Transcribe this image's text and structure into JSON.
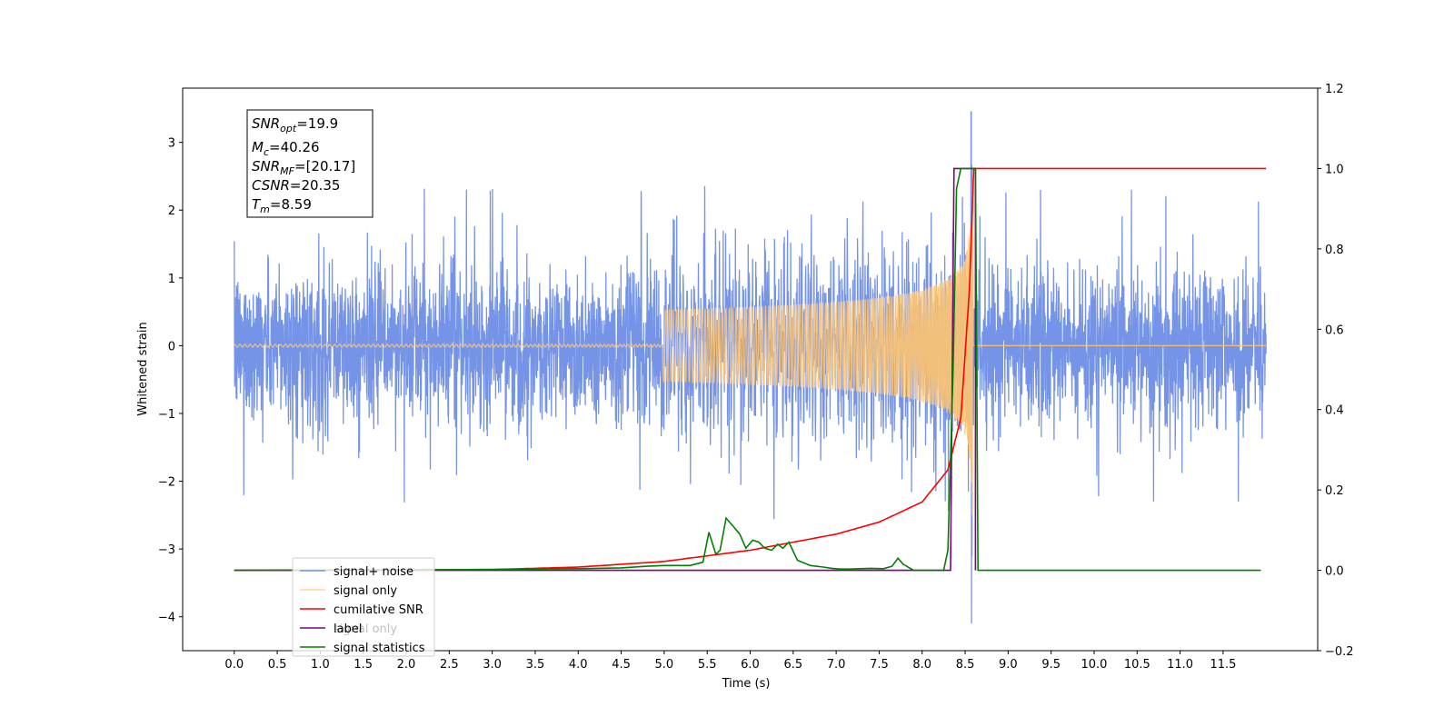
{
  "chart_data": {
    "type": "line",
    "xlabel": "Time (s)",
    "ylabel": "Whitened strain",
    "xlim": [
      -0.6,
      12.6
    ],
    "ylim": [
      -4.5,
      3.8
    ],
    "y2lim": [
      -0.2,
      1.2
    ],
    "x_ticks": [
      "0.0",
      "0.5",
      "1.0",
      "1.5",
      "2.0",
      "2.5",
      "3.0",
      "3.5",
      "4.0",
      "4.5",
      "5.0",
      "5.5",
      "6.0",
      "6.5",
      "7.0",
      "7.5",
      "8.0",
      "8.5",
      "9.0",
      "9.5",
      "10.0",
      "10.5",
      "11.0",
      "11.5"
    ],
    "y_ticks": [
      "−4",
      "−3",
      "−2",
      "−1",
      "0",
      "1",
      "2",
      "3"
    ],
    "y2_ticks": [
      "−0.2",
      "0.0",
      "0.2",
      "0.4",
      "0.6",
      "0.8",
      "1.0",
      "1.2"
    ],
    "grid": false,
    "legend_position": "lower-left",
    "info_box": {
      "snr_opt": {
        "base": "SNR",
        "sub": "opt",
        "value": "=19.9"
      },
      "mc": {
        "base": "M",
        "sub": "c",
        "value": "=40.26"
      },
      "snr_mf": {
        "base": "SNR",
        "sub": "MF",
        "value": "=[20.17]"
      },
      "csnr": {
        "base": "CSNR",
        "value": "=20.35"
      },
      "tm": {
        "base": "T",
        "sub": "m",
        "value": "=8.59"
      }
    },
    "series": [
      {
        "name": "signal+ noise",
        "color": "#7594e8",
        "axis": "left",
        "description_values": {
          "x_start": 0.0,
          "x_end": 12.0,
          "typical_amplitude": 1.1,
          "max": 3.45,
          "min": -4.1,
          "peak_x": 8.57
        }
      },
      {
        "name": "signal only",
        "color": "#ffc470",
        "axis": "left",
        "chirp": {
          "t_merger": 8.59,
          "peak_amplitude": 2.9,
          "visible_from": 5.0
        }
      },
      {
        "name": "cumilative SNR",
        "color": "#ff0000",
        "axis": "right",
        "points": [
          [
            0.0,
            0.0
          ],
          [
            3.0,
            0.002
          ],
          [
            4.0,
            0.008
          ],
          [
            5.0,
            0.022
          ],
          [
            6.0,
            0.05
          ],
          [
            7.0,
            0.09
          ],
          [
            7.5,
            0.12
          ],
          [
            8.0,
            0.17
          ],
          [
            8.3,
            0.25
          ],
          [
            8.45,
            0.38
          ],
          [
            8.55,
            0.7
          ],
          [
            8.6,
            1.0
          ],
          [
            12.0,
            1.0
          ]
        ]
      },
      {
        "name": "label",
        "color": "#800080",
        "axis": "right",
        "points": [
          [
            0.0,
            0.0
          ],
          [
            8.33,
            0.0
          ],
          [
            8.37,
            1.0
          ],
          [
            8.62,
            1.0
          ],
          [
            8.62,
            0.0
          ]
        ]
      },
      {
        "name": "signal statistics",
        "color": "#008000",
        "axis": "right",
        "points": [
          [
            0.0,
            0.0
          ],
          [
            3.0,
            0.002
          ],
          [
            3.5,
            0.003
          ],
          [
            4.0,
            0.004
          ],
          [
            4.5,
            0.006
          ],
          [
            4.8,
            0.01
          ],
          [
            5.0,
            0.012
          ],
          [
            5.3,
            0.012
          ],
          [
            5.45,
            0.02
          ],
          [
            5.52,
            0.095
          ],
          [
            5.6,
            0.04
          ],
          [
            5.65,
            0.05
          ],
          [
            5.72,
            0.13
          ],
          [
            5.8,
            0.11
          ],
          [
            5.88,
            0.09
          ],
          [
            5.95,
            0.055
          ],
          [
            6.03,
            0.075
          ],
          [
            6.1,
            0.07
          ],
          [
            6.17,
            0.055
          ],
          [
            6.25,
            0.05
          ],
          [
            6.32,
            0.065
          ],
          [
            6.38,
            0.055
          ],
          [
            6.45,
            0.07
          ],
          [
            6.55,
            0.025
          ],
          [
            6.7,
            0.012
          ],
          [
            6.85,
            0.008
          ],
          [
            6.95,
            0.005
          ],
          [
            7.05,
            0.003
          ],
          [
            7.15,
            0.003
          ],
          [
            7.4,
            0.005
          ],
          [
            7.55,
            0.004
          ],
          [
            7.65,
            0.01
          ],
          [
            7.72,
            0.03
          ],
          [
            7.78,
            0.015
          ],
          [
            7.9,
            0.0
          ],
          [
            8.25,
            0.0
          ],
          [
            8.3,
            0.05
          ],
          [
            8.36,
            0.5
          ],
          [
            8.4,
            0.95
          ],
          [
            8.45,
            1.0
          ],
          [
            8.62,
            1.0
          ],
          [
            8.65,
            0.0
          ],
          [
            11.94,
            0.0
          ]
        ]
      }
    ],
    "legend": [
      {
        "label": "signal+ noise",
        "color": "#7594e8"
      },
      {
        "label": "signal only",
        "color": "#ffc470"
      },
      {
        "label": "cumilative SNR",
        "color": "#ff0000"
      },
      {
        "label": "label",
        "color": "#800080"
      },
      {
        "label": "signal statistics",
        "color": "#008000"
      }
    ],
    "legend_overlap": {
      "signal_only_overlap": "signal only"
    }
  }
}
